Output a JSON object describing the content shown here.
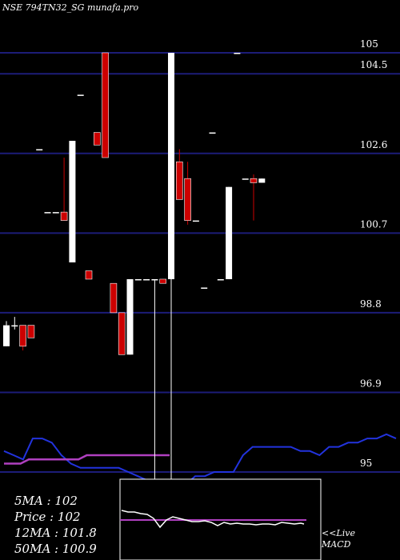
{
  "header": {
    "title": "NSE 794TN32_SG munafa.pro"
  },
  "stats": {
    "ma5": "5MA : 102",
    "price": "Price  : 102",
    "ma12": "12MA : 101.8",
    "ma50": "50MA : 100.9"
  },
  "macd": {
    "line1": "<<Live",
    "line2": "MACD"
  },
  "colors": {
    "up": "#ffffff",
    "down": "#cc0000",
    "grid": "#1c1c78",
    "ma_short": "#2233dd",
    "ma_long": "#b040c0",
    "macd_signal": "#b040c0"
  },
  "chart_data": {
    "type": "candlestick",
    "y_ticks": [
      {
        "value": 105,
        "label": "105"
      },
      {
        "value": 104.5,
        "label": "104.5"
      },
      {
        "value": 102.6,
        "label": "102.6"
      },
      {
        "value": 100.7,
        "label": "100.7"
      },
      {
        "value": 98.8,
        "label": "98.8"
      },
      {
        "value": 96.9,
        "label": "96.9"
      },
      {
        "value": 95,
        "label": "95"
      }
    ],
    "ylim": [
      94.8,
      105.5
    ],
    "candles": [
      {
        "o": 98.0,
        "h": 98.6,
        "l": 98.0,
        "c": 98.5
      },
      {
        "o": 98.5,
        "h": 98.7,
        "l": 98.4,
        "c": 98.5
      },
      {
        "o": 98.5,
        "h": 98.5,
        "l": 97.9,
        "c": 98.0
      },
      {
        "o": 98.5,
        "h": 98.5,
        "l": 98.2,
        "c": 98.2
      },
      {
        "o": 102.7,
        "h": 102.7,
        "l": 102.7,
        "c": 102.7
      },
      {
        "o": 101.2,
        "h": 101.2,
        "l": 101.2,
        "c": 101.2
      },
      {
        "o": 101.2,
        "h": 101.2,
        "l": 101.2,
        "c": 101.2
      },
      {
        "o": 101.2,
        "h": 102.5,
        "l": 101.0,
        "c": 101.0
      },
      {
        "o": 100.0,
        "h": 102.9,
        "l": 100.0,
        "c": 102.9
      },
      {
        "o": 104.0,
        "h": 104.0,
        "l": 104.0,
        "c": 104.0
      },
      {
        "o": 99.8,
        "h": 99.8,
        "l": 99.6,
        "c": 99.6
      },
      {
        "o": 103.1,
        "h": 103.1,
        "l": 102.8,
        "c": 102.8
      },
      {
        "o": 105.0,
        "h": 105.0,
        "l": 102.5,
        "c": 102.5
      },
      {
        "o": 99.5,
        "h": 99.5,
        "l": 98.8,
        "c": 98.8
      },
      {
        "o": 98.8,
        "h": 98.8,
        "l": 97.8,
        "c": 97.8
      },
      {
        "o": 97.8,
        "h": 99.6,
        "l": 97.8,
        "c": 99.6
      },
      {
        "o": 99.6,
        "h": 99.6,
        "l": 99.6,
        "c": 99.6
      },
      {
        "o": 99.6,
        "h": 99.6,
        "l": 99.6,
        "c": 99.6
      },
      {
        "o": 99.6,
        "h": 99.6,
        "l": 94.8,
        "c": 99.6
      },
      {
        "o": 99.6,
        "h": 99.6,
        "l": 99.5,
        "c": 99.5
      },
      {
        "o": 99.6,
        "h": 105.0,
        "l": 94.8,
        "c": 105.0
      },
      {
        "o": 102.4,
        "h": 102.7,
        "l": 101.5,
        "c": 101.5
      },
      {
        "o": 102.0,
        "h": 102.4,
        "l": 100.9,
        "c": 101.0
      },
      {
        "o": 101.0,
        "h": 101.0,
        "l": 101.0,
        "c": 101.0
      },
      {
        "o": 99.4,
        "h": 99.4,
        "l": 99.4,
        "c": 99.4
      },
      {
        "o": 103.1,
        "h": 103.1,
        "l": 103.1,
        "c": 103.1
      },
      {
        "o": 99.6,
        "h": 99.6,
        "l": 99.6,
        "c": 99.6
      },
      {
        "o": 99.6,
        "h": 101.8,
        "l": 99.6,
        "c": 101.8
      },
      {
        "o": 105.0,
        "h": 105.0,
        "l": 105.0,
        "c": 105.0
      },
      {
        "o": 102.0,
        "h": 102.0,
        "l": 102.0,
        "c": 102.0
      },
      {
        "o": 102.0,
        "h": 102.1,
        "l": 101.0,
        "c": 101.9
      },
      {
        "o": 101.9,
        "h": 102.0,
        "l": 101.9,
        "c": 102.0
      }
    ],
    "ma_short": [
      95.5,
      95.4,
      95.3,
      95.8,
      95.8,
      95.7,
      95.4,
      95.2,
      95.1,
      95.1,
      95.1,
      95.1,
      95.1,
      95.0,
      94.9,
      94.8,
      94.8,
      94.8,
      94.8,
      94.7,
      94.9,
      94.9,
      95.0,
      95.0,
      95.0,
      95.4,
      95.6,
      95.6,
      95.6,
      95.6,
      95.6,
      95.5,
      95.5,
      95.4,
      95.6,
      95.6,
      95.7,
      95.7,
      95.8,
      95.8,
      95.9,
      95.8
    ],
    "ma_long": [
      95.2,
      95.2,
      95.2,
      95.3,
      95.3,
      95.3,
      95.3,
      95.3,
      95.3,
      95.3,
      95.4,
      95.4,
      95.4,
      95.4,
      95.4,
      95.4,
      95.4,
      95.4,
      95.4,
      95.4,
      95.4
    ]
  }
}
